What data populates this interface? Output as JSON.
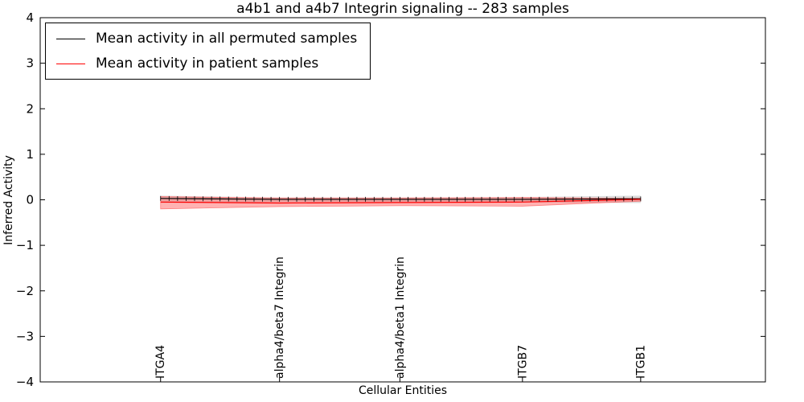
{
  "chart_data": {
    "type": "line",
    "title": "a4b1 and a4b7 Integrin signaling -- 283 samples",
    "xlabel": "Cellular Entities",
    "ylabel": "Inferred Activity",
    "ylim": [
      -4,
      4
    ],
    "yticks": [
      -4,
      -3,
      -2,
      -1,
      0,
      1,
      2,
      3,
      4
    ],
    "grid": false,
    "legend_position": "upper left",
    "categories": [
      "ITGA4",
      "alpha4/beta7 Integrin",
      "alpha4/beta1 Integrin",
      "ITGB7",
      "ITGB1"
    ],
    "category_positions": [
      0.166,
      0.33,
      0.496,
      0.665,
      0.828
    ],
    "series": [
      {
        "name": "Mean activity in all permuted samples",
        "color": "#000000",
        "band_color": "#b0b0b0",
        "values": [
          0.03,
          0.01,
          0.01,
          0.01,
          0.02
        ],
        "band_upper": [
          0.09,
          0.05,
          0.05,
          0.06,
          0.09
        ],
        "band_lower": [
          -0.07,
          -0.05,
          -0.05,
          -0.06,
          -0.07
        ]
      },
      {
        "name": "Mean activity in patient samples",
        "color": "#ff0000",
        "band_color": "#ff5555",
        "values": [
          -0.05,
          -0.07,
          -0.06,
          -0.05,
          0.01
        ],
        "band_upper": [
          0.07,
          0.04,
          0.04,
          0.05,
          0.03
        ],
        "band_lower": [
          -0.2,
          -0.15,
          -0.13,
          -0.14,
          -0.03
        ]
      }
    ]
  }
}
